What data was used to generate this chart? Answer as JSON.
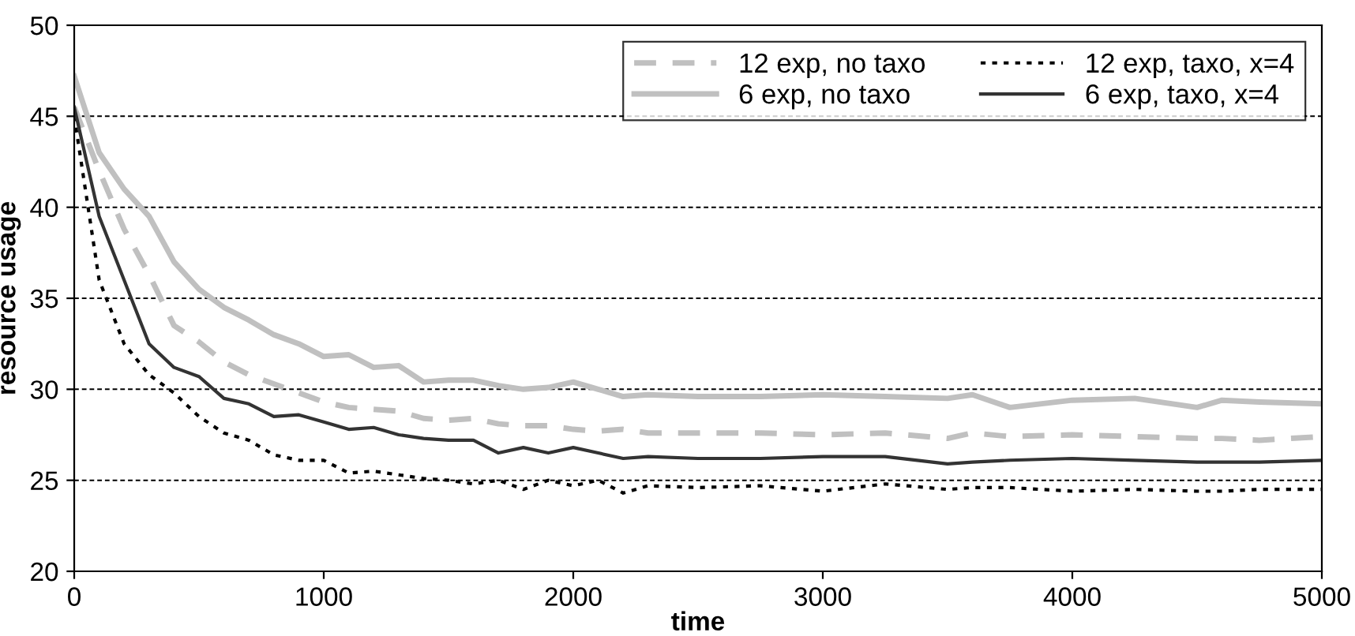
{
  "chart_data": {
    "type": "line",
    "xlabel": "time",
    "ylabel": "resource usage",
    "xlim": [
      0,
      5000
    ],
    "xticks": [
      0,
      1000,
      2000,
      3000,
      4000,
      5000
    ],
    "ylim": [
      20,
      50
    ],
    "yticks": [
      20,
      25,
      30,
      35,
      40,
      45,
      50
    ],
    "grid": "y",
    "legend": "top right",
    "marker": "none",
    "x": [
      0,
      100,
      200,
      300,
      400,
      500,
      600,
      700,
      800,
      900,
      1000,
      1100,
      1200,
      1300,
      1400,
      1500,
      1600,
      1700,
      1800,
      1900,
      2000,
      2100,
      2200,
      2300,
      2500,
      2750,
      3000,
      3250,
      3500,
      3600,
      3750,
      4000,
      4250,
      4500,
      4600,
      4750,
      5000
    ],
    "series": [
      {
        "name": "12 exp, no taxo",
        "color": "#c0c0c0",
        "line_style": "dashed",
        "values": [
          45.5,
          42,
          38.8,
          36.3,
          33.5,
          32.6,
          31.5,
          30.8,
          30.3,
          29.8,
          29.3,
          29,
          28.9,
          28.8,
          28.4,
          28.3,
          28.4,
          28.1,
          28,
          28,
          27.8,
          27.7,
          27.8,
          27.6,
          27.6,
          27.6,
          27.5,
          27.6,
          27.3,
          27.6,
          27.4,
          27.5,
          27.4,
          27.3,
          27.3,
          27.2,
          27.4
        ]
      },
      {
        "name": "6 exp, no taxo",
        "color": "#c0c0c0",
        "line_style": "solid",
        "values": [
          47.2,
          43,
          41,
          39.5,
          37,
          35.5,
          34.5,
          33.8,
          33,
          32.5,
          31.8,
          31.9,
          31.2,
          31.3,
          30.4,
          30.5,
          30.5,
          30.2,
          30,
          30.1,
          30.4,
          30,
          29.6,
          29.7,
          29.6,
          29.6,
          29.7,
          29.6,
          29.5,
          29.7,
          29.0,
          29.4,
          29.5,
          29.0,
          29.4,
          29.3,
          29.2
        ]
      },
      {
        "name": "12 exp, taxo, x=4",
        "color": "#000000",
        "line_style": "dotted",
        "values": [
          45,
          36,
          32.5,
          30.8,
          29.8,
          28.5,
          27.6,
          27.2,
          26.4,
          26.1,
          26.1,
          25.4,
          25.5,
          25.3,
          25.1,
          25.0,
          24.8,
          25.0,
          24.5,
          25.0,
          24.7,
          25.0,
          24.3,
          24.7,
          24.6,
          24.7,
          24.4,
          24.8,
          24.5,
          24.6,
          24.6,
          24.4,
          24.5,
          24.4,
          24.4,
          24.5,
          24.5
        ]
      },
      {
        "name": "6 exp, taxo, x=4",
        "color": "#333333",
        "line_style": "solid",
        "values": [
          45.5,
          39.5,
          36,
          32.5,
          31.2,
          30.7,
          29.5,
          29.2,
          28.5,
          28.6,
          28.2,
          27.8,
          27.9,
          27.5,
          27.3,
          27.2,
          27.2,
          26.5,
          26.8,
          26.5,
          26.8,
          26.5,
          26.2,
          26.3,
          26.2,
          26.2,
          26.3,
          26.3,
          25.9,
          26.0,
          26.1,
          26.2,
          26.1,
          26.0,
          26.0,
          26.0,
          26.1
        ]
      }
    ]
  }
}
